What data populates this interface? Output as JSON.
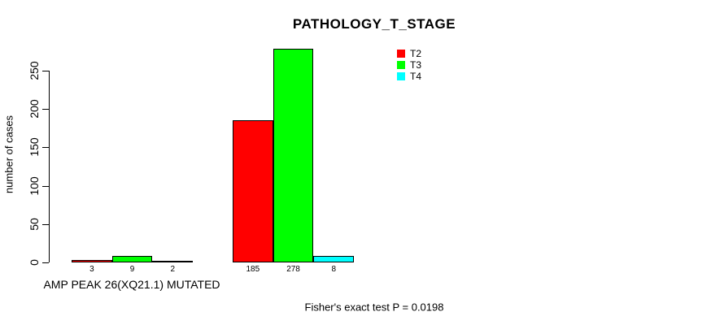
{
  "chart_data": {
    "type": "bar",
    "title": "PATHOLOGY_T_STAGE",
    "ylabel": "number of cases",
    "xlabel": "",
    "ylim": [
      0,
      278
    ],
    "yticks": [
      0,
      50,
      100,
      150,
      200,
      250
    ],
    "grid": false,
    "legend_position": "top-right",
    "categories": [
      "AMP PEAK 26(XQ21.1) MUTATED",
      ""
    ],
    "series": [
      {
        "name": "T2",
        "color": "#ff0000",
        "values": [
          3,
          185
        ]
      },
      {
        "name": "T3",
        "color": "#00ff00",
        "values": [
          9,
          278
        ]
      },
      {
        "name": "T4",
        "color": "#00ffff",
        "values": [
          2,
          8
        ]
      }
    ],
    "footnote": "Fisher's exact test P = 0.0198"
  }
}
